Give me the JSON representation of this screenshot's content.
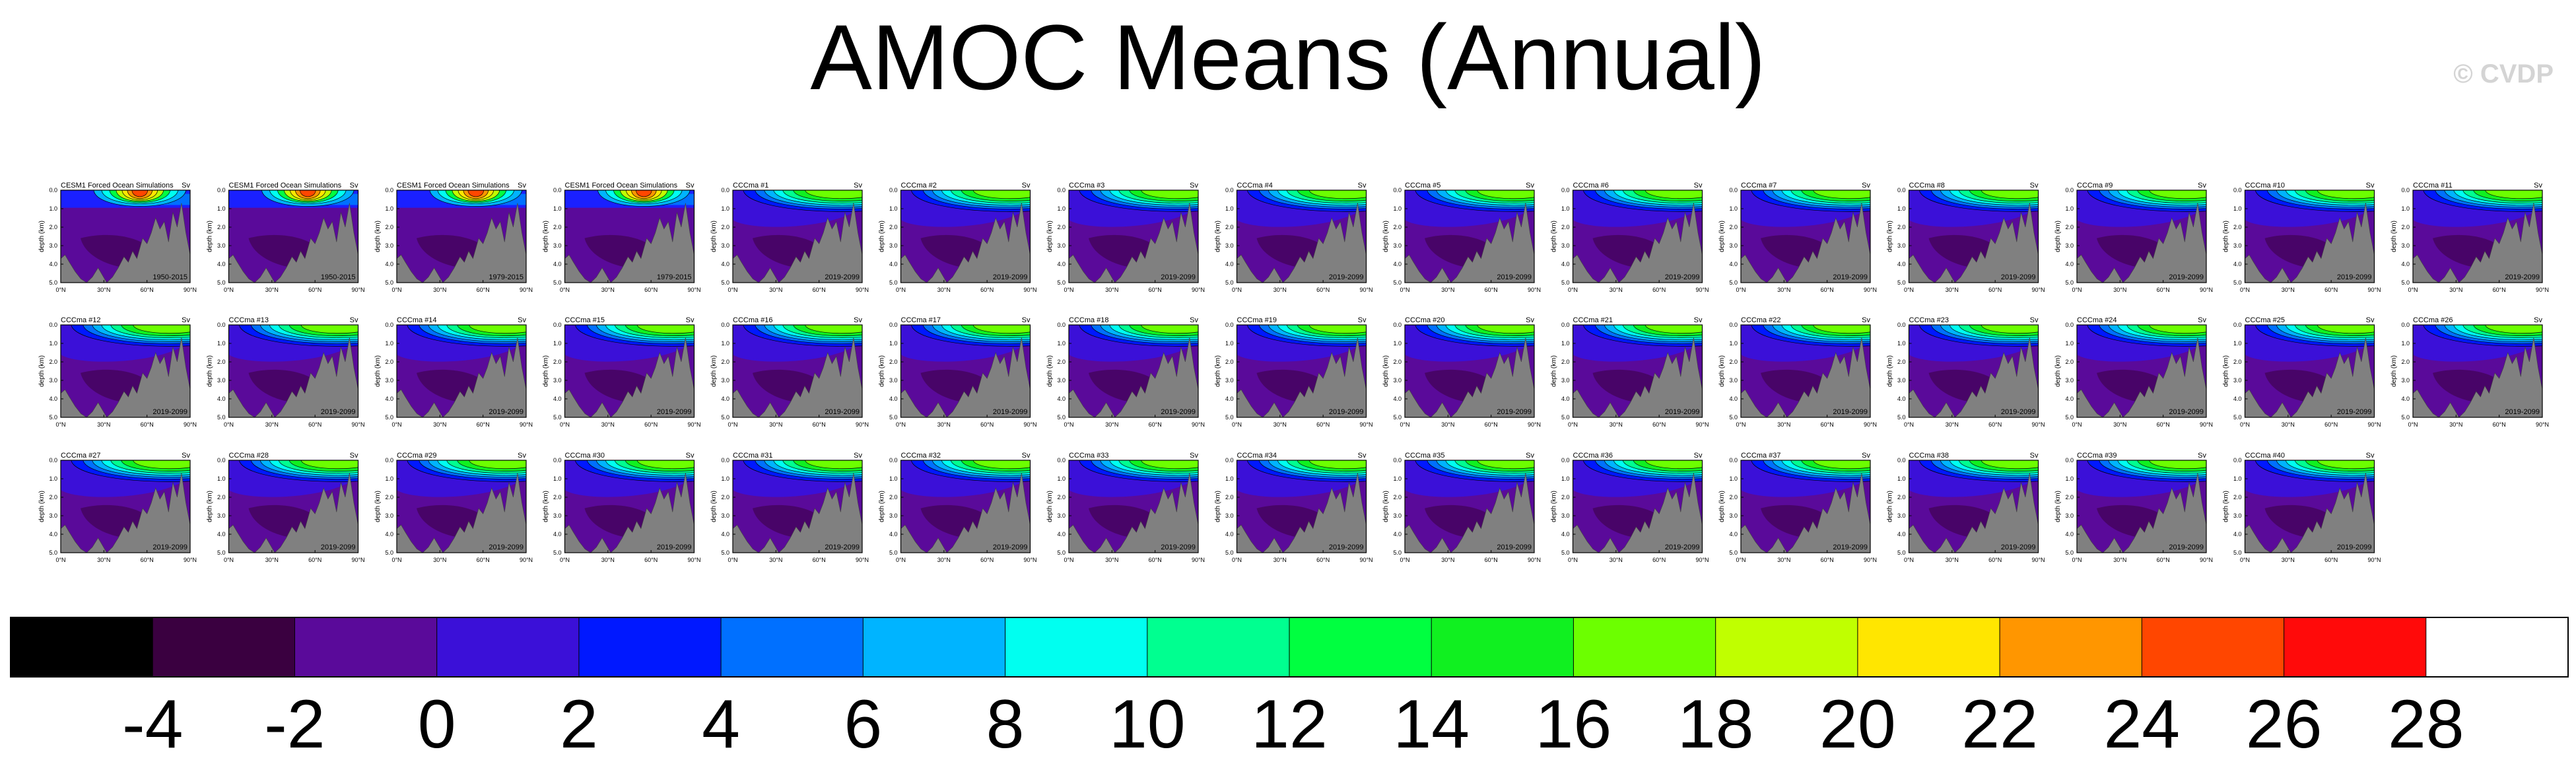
{
  "title": "AMOC Means (Annual)",
  "watermark": "© CVDP",
  "chart_data": {
    "type": "heatmap",
    "units": "Sv",
    "ylabel": "depth (km)",
    "y_ticks": [
      "0.0",
      "1.0",
      "2.0",
      "3.0",
      "4.0",
      "5.0"
    ],
    "x_ticks": [
      "0°N",
      "30°N",
      "60°N",
      "90°N"
    ],
    "panels": [
      {
        "name": "CESM1 Forced Ocean Simulations",
        "period": "1950-2015"
      },
      {
        "name": "CESM1 Forced Ocean Simulations",
        "period": "1950-2015"
      },
      {
        "name": "CESM1 Forced Ocean Simulations",
        "period": "1979-2015"
      },
      {
        "name": "CESM1 Forced Ocean Simulations",
        "period": "1979-2015"
      },
      {
        "name": "CCCma #1",
        "period": "2019-2099"
      },
      {
        "name": "CCCma #2",
        "period": "2019-2099"
      },
      {
        "name": "CCCma #3",
        "period": "2019-2099"
      },
      {
        "name": "CCCma #4",
        "period": "2019-2099"
      },
      {
        "name": "CCCma #5",
        "period": "2019-2099"
      },
      {
        "name": "CCCma #6",
        "period": "2019-2099"
      },
      {
        "name": "CCCma #7",
        "period": "2019-2099"
      },
      {
        "name": "CCCma #8",
        "period": "2019-2099"
      },
      {
        "name": "CCCma #9",
        "period": "2019-2099"
      },
      {
        "name": "CCCma #10",
        "period": "2019-2099"
      },
      {
        "name": "CCCma #11",
        "period": "2019-2099"
      },
      {
        "name": "CCCma #12",
        "period": "2019-2099"
      },
      {
        "name": "CCCma #13",
        "period": "2019-2099"
      },
      {
        "name": "CCCma #14",
        "period": "2019-2099"
      },
      {
        "name": "CCCma #15",
        "period": "2019-2099"
      },
      {
        "name": "CCCma #16",
        "period": "2019-2099"
      },
      {
        "name": "CCCma #17",
        "period": "2019-2099"
      },
      {
        "name": "CCCma #18",
        "period": "2019-2099"
      },
      {
        "name": "CCCma #19",
        "period": "2019-2099"
      },
      {
        "name": "CCCma #20",
        "period": "2019-2099"
      },
      {
        "name": "CCCma #21",
        "period": "2019-2099"
      },
      {
        "name": "CCCma #22",
        "period": "2019-2099"
      },
      {
        "name": "CCCma #23",
        "period": "2019-2099"
      },
      {
        "name": "CCCma #24",
        "period": "2019-2099"
      },
      {
        "name": "CCCma #25",
        "period": "2019-2099"
      },
      {
        "name": "CCCma #26",
        "period": "2019-2099"
      },
      {
        "name": "CCCma #27",
        "period": "2019-2099"
      },
      {
        "name": "CCCma #28",
        "period": "2019-2099"
      },
      {
        "name": "CCCma #29",
        "period": "2019-2099"
      },
      {
        "name": "CCCma #30",
        "period": "2019-2099"
      },
      {
        "name": "CCCma #31",
        "period": "2019-2099"
      },
      {
        "name": "CCCma #32",
        "period": "2019-2099"
      },
      {
        "name": "CCCma #33",
        "period": "2019-2099"
      },
      {
        "name": "CCCma #34",
        "period": "2019-2099"
      },
      {
        "name": "CCCma #35",
        "period": "2019-2099"
      },
      {
        "name": "CCCma #36",
        "period": "2019-2099"
      },
      {
        "name": "CCCma #37",
        "period": "2019-2099"
      },
      {
        "name": "CCCma #38",
        "period": "2019-2099"
      },
      {
        "name": "CCCma #39",
        "period": "2019-2099"
      },
      {
        "name": "CCCma #40",
        "period": "2019-2099"
      }
    ],
    "colorbar": {
      "colors": [
        "#000000",
        "#3a0040",
        "#5a0a9a",
        "#3b10d8",
        "#0018ff",
        "#0070ff",
        "#00b4ff",
        "#00fff0",
        "#00ff90",
        "#00ff40",
        "#10f020",
        "#6cff00",
        "#c0ff00",
        "#ffe600",
        "#ff9600",
        "#ff4600",
        "#ff0a0a",
        "#ffffff"
      ],
      "labels": [
        "-4",
        "-2",
        "0",
        "2",
        "4",
        "6",
        "8",
        "10",
        "12",
        "14",
        "16",
        "18",
        "20",
        "22",
        "24",
        "26",
        "28"
      ]
    }
  }
}
